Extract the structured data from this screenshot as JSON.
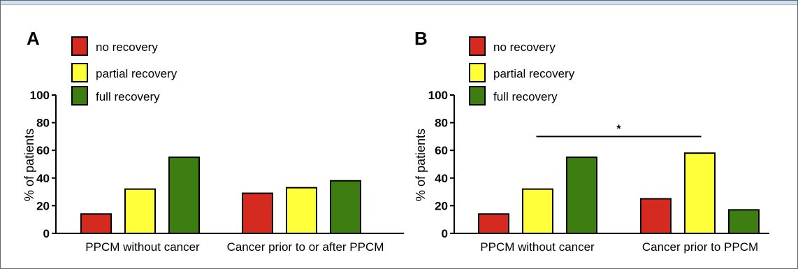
{
  "colors": {
    "no_recovery": "#d42a20",
    "partial_recovery": "#ffff3a",
    "full_recovery": "#3e7d12",
    "top_band": "#cfe0f4"
  },
  "chart_data": [
    {
      "type": "bar",
      "panel": "A",
      "ylabel": "% of patients",
      "ylim": [
        0,
        100
      ],
      "yticks": [
        0,
        20,
        40,
        60,
        80,
        100
      ],
      "categories": [
        "PPCM without cancer",
        "Cancer prior to or after PPCM"
      ],
      "series": [
        {
          "name": "no recovery",
          "values": [
            14,
            29
          ]
        },
        {
          "name": "partial recovery",
          "values": [
            32,
            33
          ]
        },
        {
          "name": "full recovery",
          "values": [
            55,
            38
          ]
        }
      ],
      "legend": "top-left",
      "annotations": []
    },
    {
      "type": "bar",
      "panel": "B",
      "ylabel": "% of patients",
      "ylim": [
        0,
        100
      ],
      "yticks": [
        0,
        20,
        40,
        60,
        80,
        100
      ],
      "categories": [
        "PPCM without cancer",
        "Cancer prior to PPCM"
      ],
      "series": [
        {
          "name": "no recovery",
          "values": [
            14,
            25
          ]
        },
        {
          "name": "partial recovery",
          "values": [
            32,
            58
          ]
        },
        {
          "name": "full recovery",
          "values": [
            55,
            17
          ]
        }
      ],
      "legend": "top-left",
      "annotations": [
        {
          "text": "*",
          "type": "significance-bracket",
          "from_category": 0,
          "to_category": 1,
          "y": 70
        }
      ]
    }
  ]
}
